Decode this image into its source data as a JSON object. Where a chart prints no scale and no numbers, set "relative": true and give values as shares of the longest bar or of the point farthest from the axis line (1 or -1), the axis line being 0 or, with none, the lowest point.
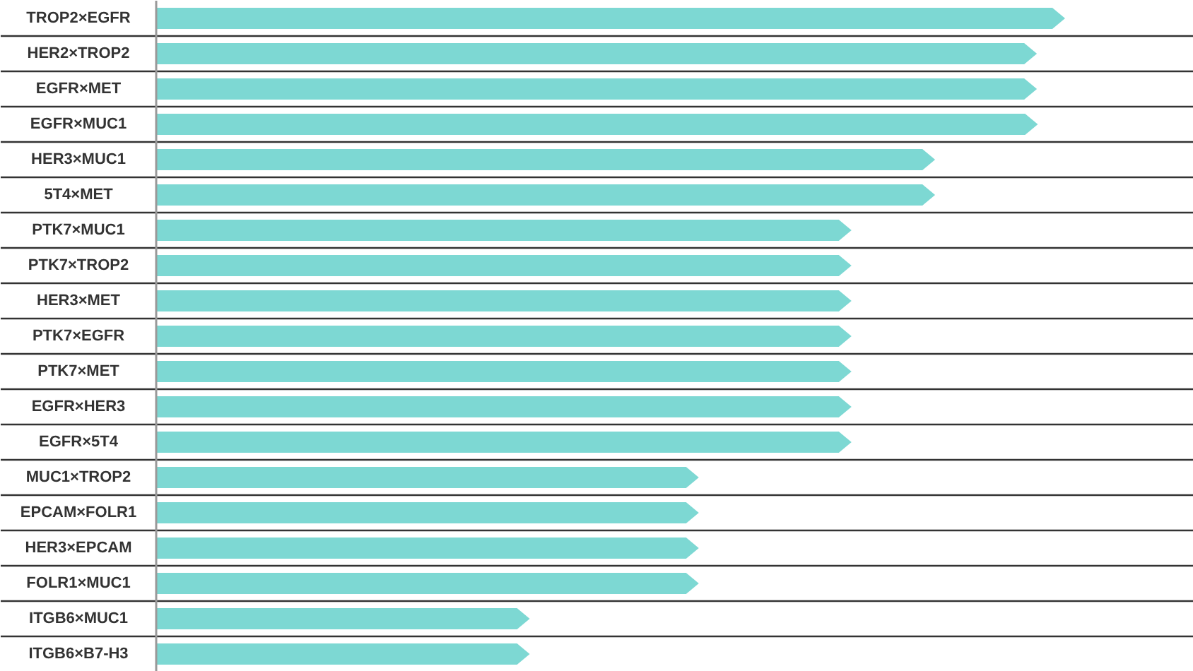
{
  "chart_data": {
    "type": "bar",
    "orientation": "horizontal",
    "relative": true,
    "color": "#7dd8d3",
    "categories": [
      "TROP2×EGFR",
      "HER2×TROP2",
      "EGFR×MET",
      "EGFR×MUC1",
      "HER3×MUC1",
      "5T4×MET",
      "PTK7×MUC1",
      "PTK7×TROP2",
      "HER3×MET",
      "PTK7×EGFR",
      "PTK7×MET",
      "EGFR×HER3",
      "EGFR×5T4",
      "MUC1×TROP2",
      "EPCAM×FOLR1",
      "HER3×EPCAM",
      "FOLR1×MUC1",
      "ITGB6×MUC1",
      "ITGB6×B7-H3"
    ],
    "values": [
      1,
      0.969,
      0.969,
      0.97,
      0.857,
      0.857,
      0.765,
      0.765,
      0.765,
      0.765,
      0.765,
      0.765,
      0.765,
      0.597,
      0.597,
      0.597,
      0.597,
      0.411,
      0.411
    ]
  }
}
